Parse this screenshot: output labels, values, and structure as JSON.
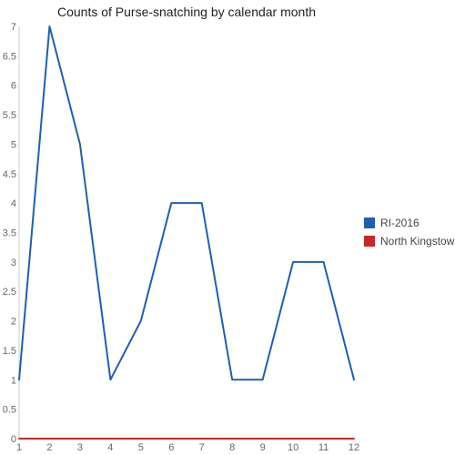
{
  "chart_data": {
    "type": "line",
    "title": "Counts of Purse-snatching by calendar month",
    "xlabel": "",
    "ylabel": "",
    "x": [
      1,
      2,
      3,
      4,
      5,
      6,
      7,
      8,
      9,
      10,
      11,
      12
    ],
    "x_ticks": [
      "1",
      "2",
      "3",
      "4",
      "5",
      "6",
      "7",
      "8",
      "9",
      "10",
      "11",
      "12"
    ],
    "y_ticks": [
      "0",
      "0.5",
      "1",
      "1.5",
      "2",
      "2.5",
      "3",
      "3.5",
      "4",
      "4.5",
      "5",
      "5.5",
      "6",
      "6.5",
      "7"
    ],
    "ylim": [
      0,
      7
    ],
    "xlim": [
      1,
      12
    ],
    "grid": false,
    "legend_position": "right",
    "series": [
      {
        "name": "RI-2016",
        "color": "#1f5fb0",
        "values": [
          1,
          7,
          5,
          1,
          2,
          4,
          4,
          1,
          1,
          3,
          3,
          1
        ]
      },
      {
        "name": "North Kingstown",
        "color": "#c62828",
        "values": [
          0,
          0,
          0,
          0,
          0,
          0,
          0,
          0,
          0,
          0,
          0,
          0
        ]
      }
    ]
  }
}
